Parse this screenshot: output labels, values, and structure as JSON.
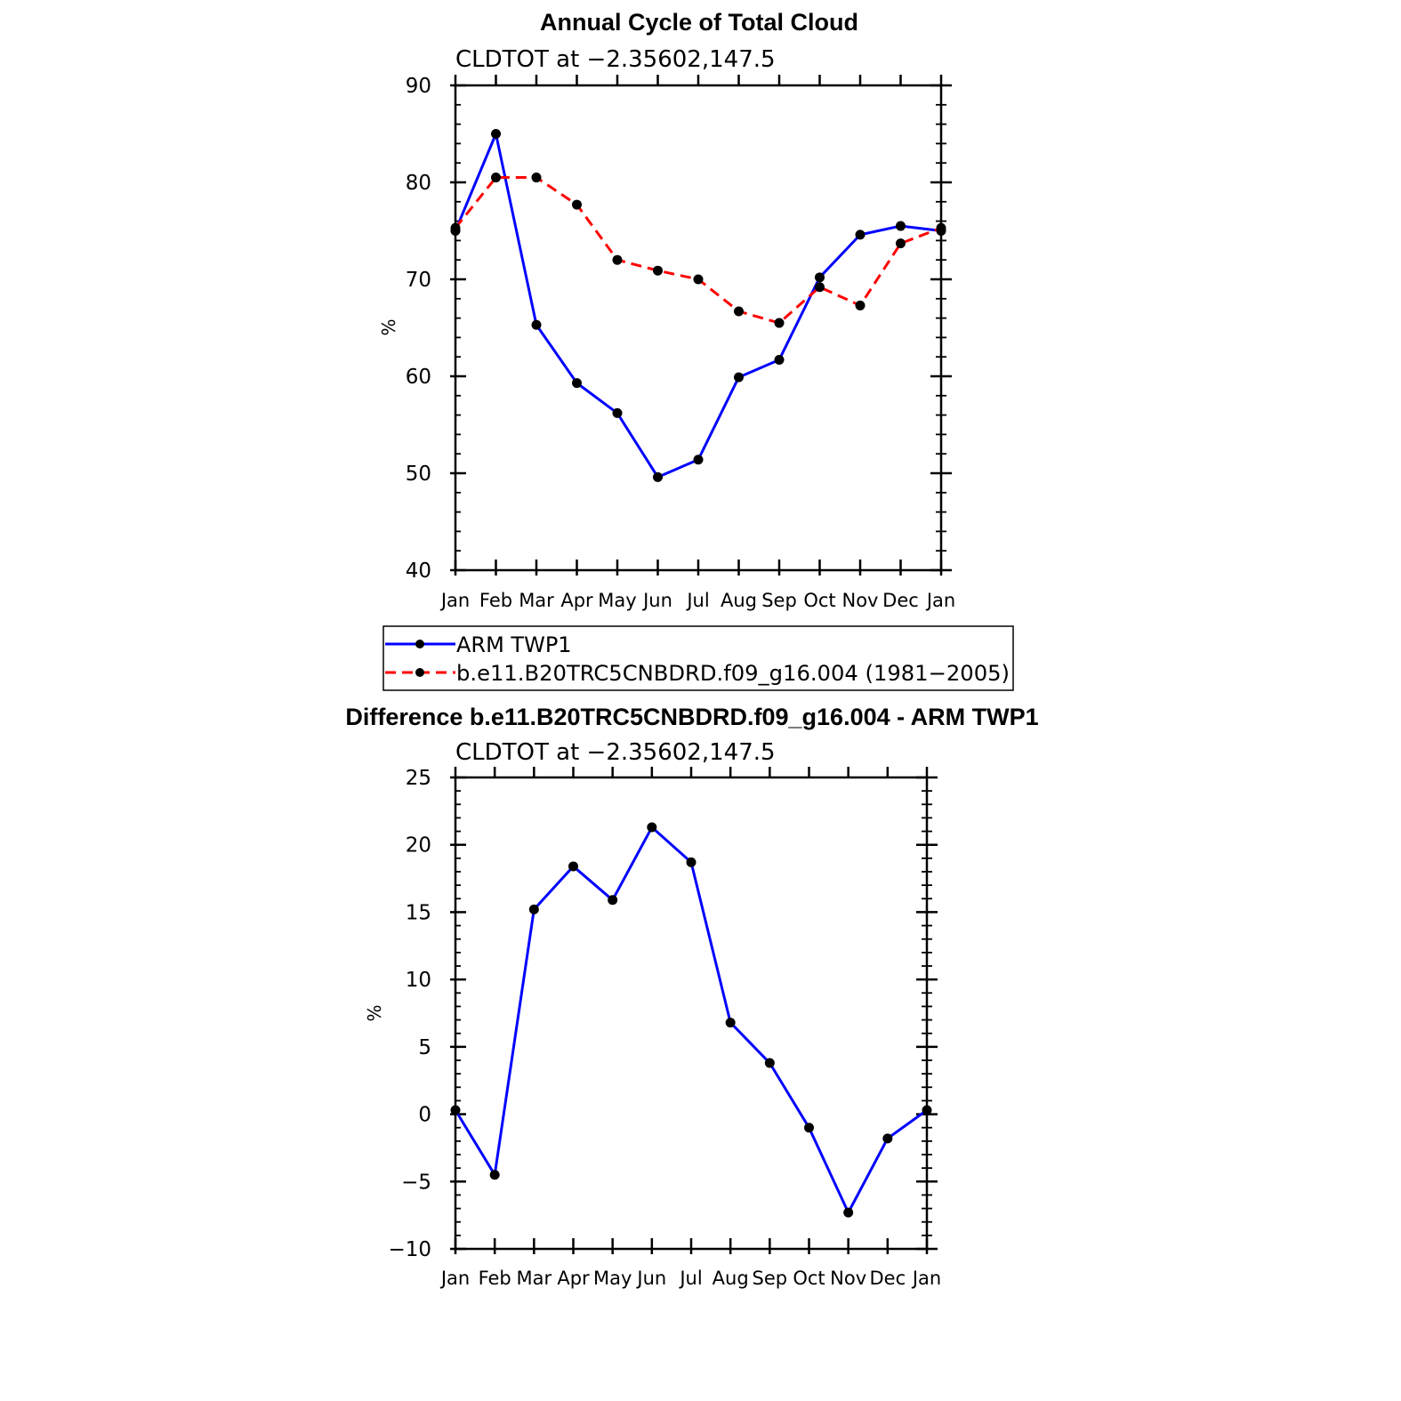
{
  "colors": {
    "series_1": "#0000ff",
    "series_2": "#ff0000",
    "marker": "#000000",
    "axis": "#000000"
  },
  "legend": {
    "entries": [
      "ARM TWP1",
      "b.e11.B20TRC5CNBDRD.f09_g16.004 (1981−2005)"
    ]
  },
  "chart_data": [
    {
      "type": "line",
      "title": "Annual Cycle of Total Cloud",
      "subtitle": "CLDTOT at −2.35602,147.5",
      "xlabel": "",
      "ylabel": "%",
      "categories": [
        "Jan",
        "Feb",
        "Mar",
        "Apr",
        "May",
        "Jun",
        "Jul",
        "Aug",
        "Sep",
        "Oct",
        "Nov",
        "Dec",
        "Jan"
      ],
      "ylim": [
        40,
        90
      ],
      "yticks": [
        40,
        50,
        60,
        70,
        80,
        90
      ],
      "ytick_labels": [
        "40",
        "50",
        "60",
        "70",
        "80",
        "90"
      ],
      "grid": false,
      "legend_position": "below",
      "series": [
        {
          "name": "ARM TWP1",
          "line_style": "solid",
          "color": "#0000ff",
          "values": [
            75.0,
            85.0,
            65.3,
            59.3,
            56.2,
            49.6,
            51.4,
            59.9,
            61.7,
            70.2,
            74.6,
            75.5,
            75.0
          ]
        },
        {
          "name": "b.e11.B20TRC5CNBDRD.f09_g16.004 (1981−2005)",
          "line_style": "dashed",
          "color": "#ff0000",
          "values": [
            75.3,
            80.5,
            80.5,
            77.7,
            72.0,
            70.9,
            70.0,
            66.7,
            65.5,
            69.2,
            67.3,
            73.7,
            75.3
          ]
        }
      ]
    },
    {
      "type": "line",
      "title": "Difference b.e11.B20TRC5CNBDRD.f09_g16.004 - ARM TWP1",
      "subtitle": "CLDTOT at −2.35602,147.5",
      "xlabel": "",
      "ylabel": "%",
      "categories": [
        "Jan",
        "Feb",
        "Mar",
        "Apr",
        "May",
        "Jun",
        "Jul",
        "Aug",
        "Sep",
        "Oct",
        "Nov",
        "Dec",
        "Jan"
      ],
      "ylim": [
        -10,
        25
      ],
      "yticks": [
        -10,
        -5,
        0,
        5,
        10,
        15,
        20,
        25
      ],
      "ytick_labels": [
        "−10",
        "−5",
        "0",
        "5",
        "10",
        "15",
        "20",
        "25"
      ],
      "grid": false,
      "series": [
        {
          "name": "Difference",
          "line_style": "solid",
          "color": "#0000ff",
          "values": [
            0.3,
            -4.5,
            15.2,
            18.4,
            15.9,
            21.3,
            18.7,
            6.8,
            3.8,
            -1.0,
            -7.3,
            -1.8,
            0.3
          ]
        }
      ]
    }
  ]
}
